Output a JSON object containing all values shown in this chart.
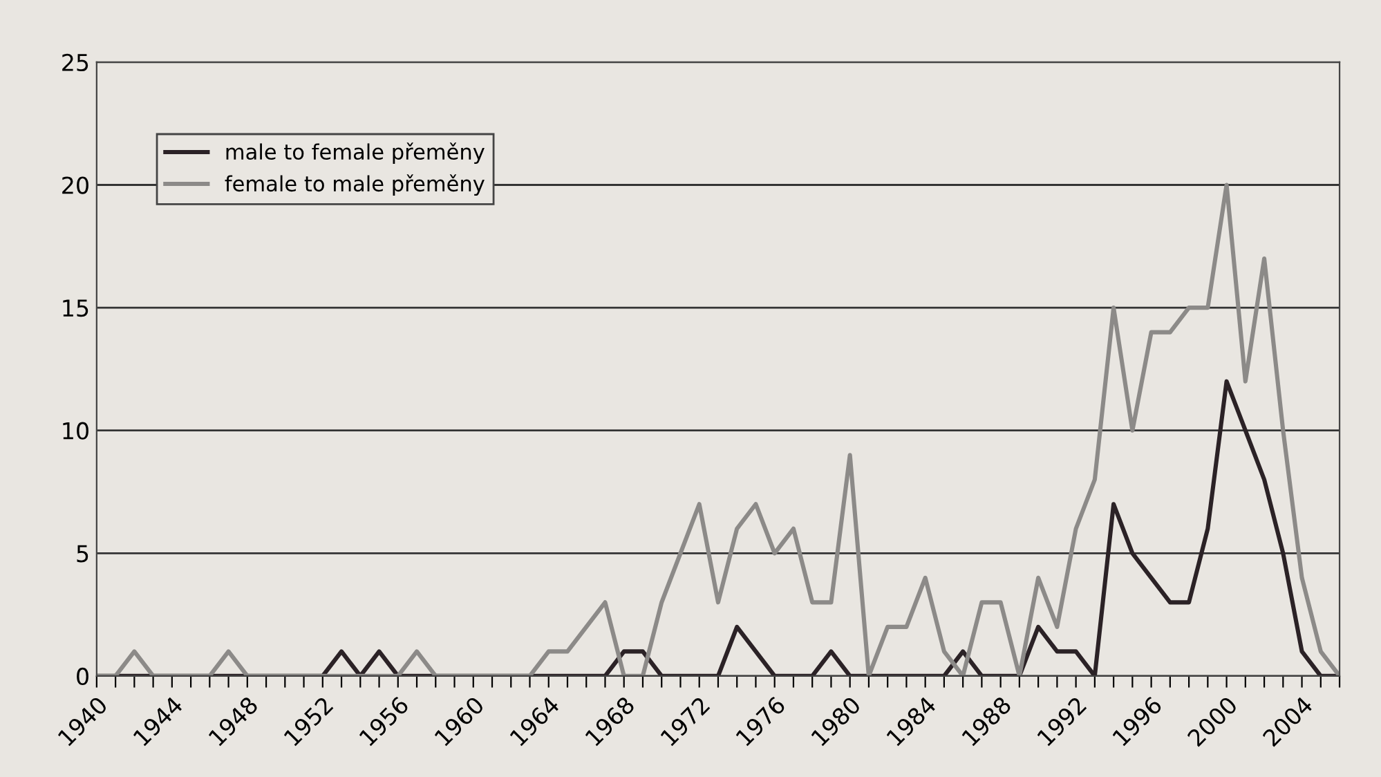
{
  "chart_data": {
    "type": "line",
    "x": [
      1940,
      1941,
      1942,
      1943,
      1944,
      1945,
      1946,
      1947,
      1948,
      1949,
      1950,
      1951,
      1952,
      1953,
      1954,
      1955,
      1956,
      1957,
      1958,
      1959,
      1960,
      1961,
      1962,
      1963,
      1964,
      1965,
      1966,
      1967,
      1968,
      1969,
      1970,
      1971,
      1972,
      1973,
      1974,
      1975,
      1976,
      1977,
      1978,
      1979,
      1980,
      1981,
      1982,
      1983,
      1984,
      1985,
      1986,
      1987,
      1988,
      1989,
      1990,
      1991,
      1992,
      1993,
      1994,
      1995,
      1996,
      1997,
      1998,
      1999,
      2000,
      2001,
      2002,
      2003,
      2004,
      2005,
      2006
    ],
    "series": [
      {
        "name": "male to female přeměny",
        "color": "#2b2226",
        "values": [
          0,
          0,
          0,
          0,
          0,
          0,
          0,
          0,
          0,
          0,
          0,
          0,
          0,
          1,
          0,
          1,
          0,
          0,
          0,
          0,
          0,
          0,
          0,
          0,
          0,
          0,
          0,
          0,
          1,
          1,
          0,
          0,
          0,
          0,
          2,
          1,
          0,
          0,
          0,
          1,
          0,
          0,
          0,
          0,
          0,
          0,
          1,
          0,
          0,
          0,
          2,
          1,
          1,
          0,
          7,
          5,
          4,
          3,
          3,
          6,
          12,
          10,
          8,
          5,
          1,
          0,
          0
        ]
      },
      {
        "name": "female to male přeměny",
        "color": "#8c8a88",
        "values": [
          0,
          0,
          1,
          0,
          0,
          0,
          0,
          1,
          0,
          0,
          0,
          0,
          0,
          0,
          0,
          0,
          0,
          1,
          0,
          0,
          0,
          0,
          0,
          0,
          1,
          1,
          2,
          3,
          0,
          0,
          3,
          5,
          7,
          3,
          6,
          7,
          5,
          6,
          3,
          3,
          9,
          0,
          2,
          2,
          4,
          1,
          0,
          3,
          3,
          0,
          4,
          2,
          6,
          8,
          15,
          10,
          14,
          14,
          15,
          15,
          20,
          12,
          17,
          10,
          4,
          1,
          0
        ]
      }
    ],
    "xlim": [
      1940,
      2006
    ],
    "xticks": [
      1940,
      {
        "value": 1941,
        "label": null
      },
      {
        "value": 1942,
        "label": null
      },
      {
        "value": 1943,
        "label": null
      },
      1944,
      {
        "value": 1945,
        "label": null
      },
      {
        "value": 1946,
        "label": null
      },
      {
        "value": 1947,
        "label": null
      },
      1948,
      {
        "value": 1949,
        "label": null
      },
      {
        "value": 1950,
        "label": null
      },
      {
        "value": 1951,
        "label": null
      },
      1952,
      {
        "value": 1953,
        "label": null
      },
      {
        "value": 1954,
        "label": null
      },
      {
        "value": 1955,
        "label": null
      },
      1956,
      {
        "value": 1957,
        "label": null
      },
      {
        "value": 1958,
        "label": null
      },
      {
        "value": 1959,
        "label": null
      },
      1960,
      {
        "value": 1961,
        "label": null
      },
      {
        "value": 1962,
        "label": null
      },
      {
        "value": 1963,
        "label": null
      },
      1964,
      {
        "value": 1965,
        "label": null
      },
      {
        "value": 1966,
        "label": null
      },
      {
        "value": 1967,
        "label": null
      },
      1968,
      {
        "value": 1969,
        "label": null
      },
      {
        "value": 1970,
        "label": null
      },
      {
        "value": 1971,
        "label": null
      },
      1972,
      {
        "value": 1973,
        "label": null
      },
      {
        "value": 1974,
        "label": null
      },
      {
        "value": 1975,
        "label": null
      },
      1976,
      {
        "value": 1977,
        "label": null
      },
      {
        "value": 1978,
        "label": null
      },
      {
        "value": 1979,
        "label": null
      },
      1980,
      {
        "value": 1981,
        "label": null
      },
      {
        "value": 1982,
        "label": null
      },
      {
        "value": 1983,
        "label": null
      },
      1984,
      {
        "value": 1985,
        "label": null
      },
      {
        "value": 1986,
        "label": null
      },
      {
        "value": 1987,
        "label": null
      },
      1988,
      {
        "value": 1989,
        "label": null
      },
      {
        "value": 1990,
        "label": null
      },
      {
        "value": 1991,
        "label": null
      },
      1992,
      {
        "value": 1993,
        "label": null
      },
      {
        "value": 1994,
        "label": null
      },
      {
        "value": 1995,
        "label": null
      },
      1996,
      {
        "value": 1997,
        "label": null
      },
      {
        "value": 1998,
        "label": null
      },
      {
        "value": 1999,
        "label": null
      },
      2000,
      {
        "value": 2001,
        "label": null
      },
      {
        "value": 2002,
        "label": null
      },
      {
        "value": 2003,
        "label": null
      },
      2004,
      {
        "value": 2005,
        "label": null
      },
      {
        "value": 2006,
        "label": null
      }
    ],
    "ylim": [
      0,
      25
    ],
    "yticks": [
      0,
      5,
      10,
      15,
      20,
      25
    ],
    "grid": "y",
    "legend": "top left",
    "marker": "none",
    "line_style": "solid"
  }
}
